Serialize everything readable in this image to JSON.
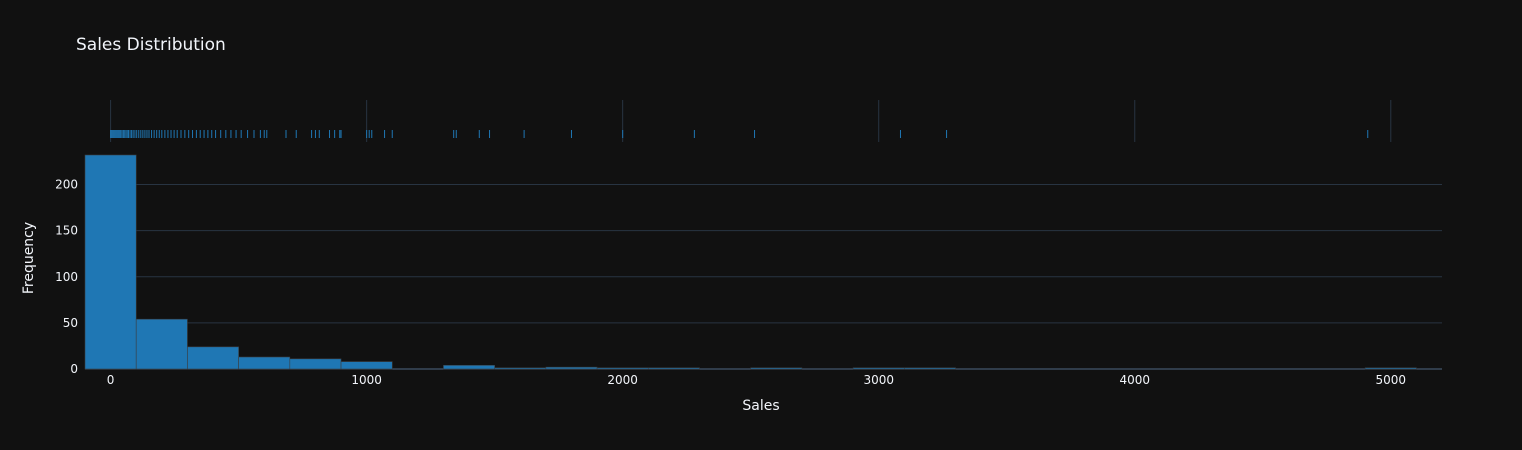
{
  "chart_data": {
    "type": "histogram",
    "title": "Sales Distribution",
    "xlabel": "Sales",
    "ylabel": "Frequency",
    "xlim": [
      -100,
      5200
    ],
    "ylim": [
      0,
      232
    ],
    "x_ticks": [
      0,
      1000,
      2000,
      3000,
      4000,
      5000
    ],
    "x_tick_labels": [
      "0",
      "1000",
      "2000",
      "3000",
      "4000",
      "5000"
    ],
    "y_ticks": [
      0,
      50,
      100,
      150,
      200
    ],
    "y_tick_labels": [
      "0",
      "50",
      "100",
      "150",
      "200"
    ],
    "bin_width": 200,
    "bins": [
      {
        "start": -100,
        "end": 100,
        "count": 232
      },
      {
        "start": 100,
        "end": 300,
        "count": 54
      },
      {
        "start": 300,
        "end": 500,
        "count": 24
      },
      {
        "start": 500,
        "end": 700,
        "count": 13
      },
      {
        "start": 700,
        "end": 900,
        "count": 11
      },
      {
        "start": 900,
        "end": 1100,
        "count": 8
      },
      {
        "start": 1100,
        "end": 1300,
        "count": 0
      },
      {
        "start": 1300,
        "end": 1500,
        "count": 4
      },
      {
        "start": 1500,
        "end": 1700,
        "count": 1
      },
      {
        "start": 1700,
        "end": 1900,
        "count": 2
      },
      {
        "start": 1900,
        "end": 2100,
        "count": 1
      },
      {
        "start": 2100,
        "end": 2300,
        "count": 1
      },
      {
        "start": 2300,
        "end": 2500,
        "count": 0
      },
      {
        "start": 2500,
        "end": 2700,
        "count": 1
      },
      {
        "start": 2700,
        "end": 2900,
        "count": 0
      },
      {
        "start": 2900,
        "end": 3100,
        "count": 1
      },
      {
        "start": 3100,
        "end": 3300,
        "count": 1
      },
      {
        "start": 3300,
        "end": 3500,
        "count": 0
      },
      {
        "start": 3500,
        "end": 3700,
        "count": 0
      },
      {
        "start": 3700,
        "end": 3900,
        "count": 0
      },
      {
        "start": 3900,
        "end": 4100,
        "count": 0
      },
      {
        "start": 4100,
        "end": 4300,
        "count": 0
      },
      {
        "start": 4300,
        "end": 4500,
        "count": 0
      },
      {
        "start": 4500,
        "end": 4700,
        "count": 0
      },
      {
        "start": 4700,
        "end": 4900,
        "count": 0
      },
      {
        "start": 4900,
        "end": 5100,
        "count": 1
      }
    ],
    "rug_values": [
      0,
      4,
      8,
      12,
      16,
      20,
      24,
      28,
      32,
      36,
      40,
      45,
      50,
      55,
      60,
      65,
      70,
      76,
      82,
      88,
      95,
      102,
      110,
      118,
      126,
      134,
      142,
      150,
      160,
      170,
      180,
      190,
      200,
      212,
      224,
      236,
      248,
      260,
      275,
      290,
      305,
      320,
      335,
      350,
      365,
      380,
      395,
      410,
      430,
      450,
      470,
      490,
      510,
      535,
      560,
      585,
      600,
      610,
      685,
      725,
      785,
      800,
      815,
      855,
      875,
      895,
      900,
      1000,
      1010,
      1020,
      1070,
      1100,
      1340,
      1350,
      1440,
      1480,
      1615,
      1800,
      2000,
      2280,
      2515,
      3085,
      3265,
      4910
    ],
    "grid": true,
    "legend": "none",
    "colors": {
      "background": "#111111",
      "bar": "#1f77b4",
      "grid": "#283442",
      "text": "#f2f5fa"
    }
  }
}
